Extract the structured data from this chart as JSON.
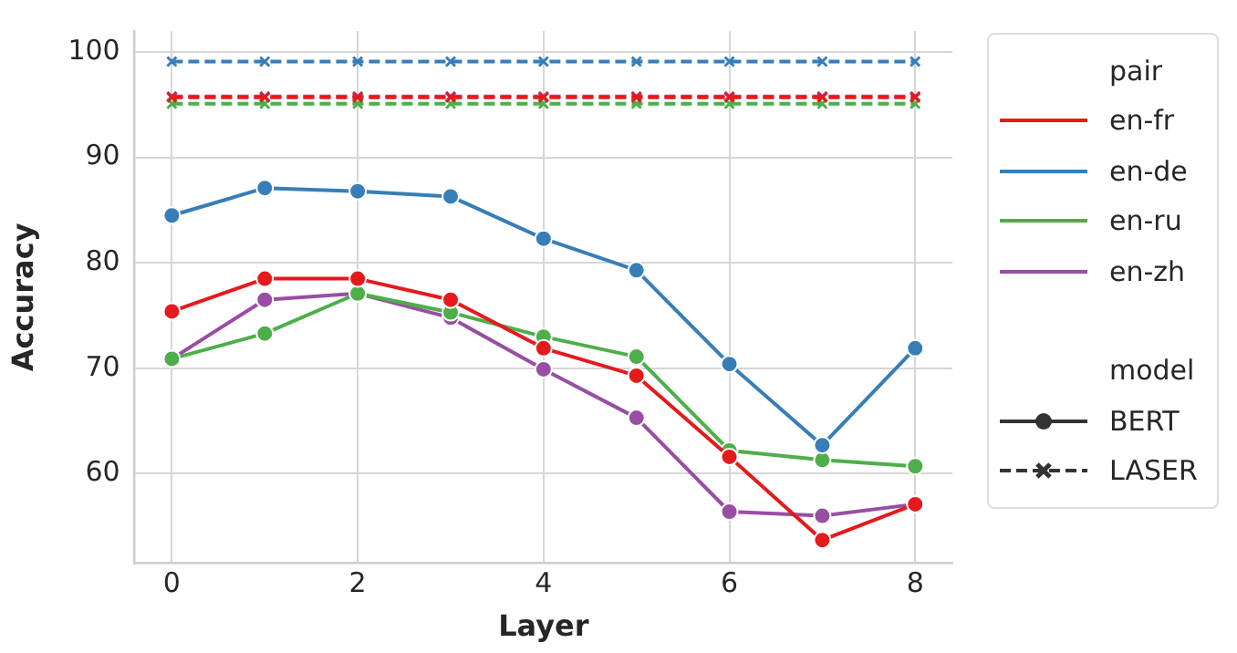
{
  "chart_data": {
    "type": "line",
    "xlabel": "Layer",
    "ylabel": "Accuracy",
    "x": [
      0,
      1,
      2,
      3,
      4,
      5,
      6,
      7,
      8
    ],
    "xlim": [
      -0.4,
      8.4
    ],
    "ylim": [
      51.5,
      102
    ],
    "xticks": [
      0,
      2,
      4,
      6,
      8
    ],
    "yticks": [
      60,
      70,
      80,
      90,
      100
    ],
    "grid": true,
    "legend": "right",
    "legend_title": "pair",
    "annotations": [
      "model",
      "BERT",
      "LASER"
    ],
    "series": [
      {
        "name": "en-fr",
        "color": "#e41a1c",
        "marker": "circle",
        "line_style": "solid",
        "values": [
          75.4,
          78.5,
          78.5,
          76.5,
          71.9,
          69.3,
          61.6,
          53.7,
          57.1
        ]
      },
      {
        "name": "en-de",
        "color": "#377eb8",
        "marker": "circle",
        "line_style": "solid",
        "values": [
          84.5,
          87.1,
          86.8,
          86.3,
          82.3,
          79.3,
          70.4,
          62.7,
          71.9
        ]
      },
      {
        "name": "en-ru",
        "color": "#4daf4a",
        "marker": "circle",
        "line_style": "solid",
        "values": [
          70.9,
          73.3,
          77.1,
          75.3,
          73.0,
          71.1,
          62.2,
          61.3,
          60.7
        ]
      },
      {
        "name": "en-zh",
        "color": "#984ea3",
        "marker": "circle",
        "line_style": "solid",
        "values": [
          70.9,
          76.5,
          77.1,
          74.8,
          69.9,
          65.3,
          56.4,
          56.0,
          57.1
        ]
      },
      {
        "color": "#e41a1c",
        "marker": "cross",
        "line_style": "dashed",
        "values": [
          95.7,
          95.7,
          95.7,
          95.7,
          95.7,
          95.7,
          95.7,
          95.7,
          95.7
        ]
      },
      {
        "color": "#377eb8",
        "marker": "cross",
        "line_style": "dashed",
        "values": [
          99.1,
          99.1,
          99.1,
          99.1,
          99.1,
          99.1,
          99.1,
          99.1,
          99.1
        ]
      },
      {
        "color": "#4daf4a",
        "marker": "cross",
        "line_style": "dashed",
        "values": [
          95.1,
          95.1,
          95.1,
          95.1,
          95.1,
          95.1,
          95.1,
          95.1,
          95.1
        ]
      },
      {
        "color": "#984ea3",
        "marker": "cross",
        "line_style": "dashed",
        "values": [
          95.8,
          95.8,
          95.8,
          95.8,
          95.8,
          95.8,
          95.8,
          95.8,
          95.8
        ]
      }
    ]
  }
}
